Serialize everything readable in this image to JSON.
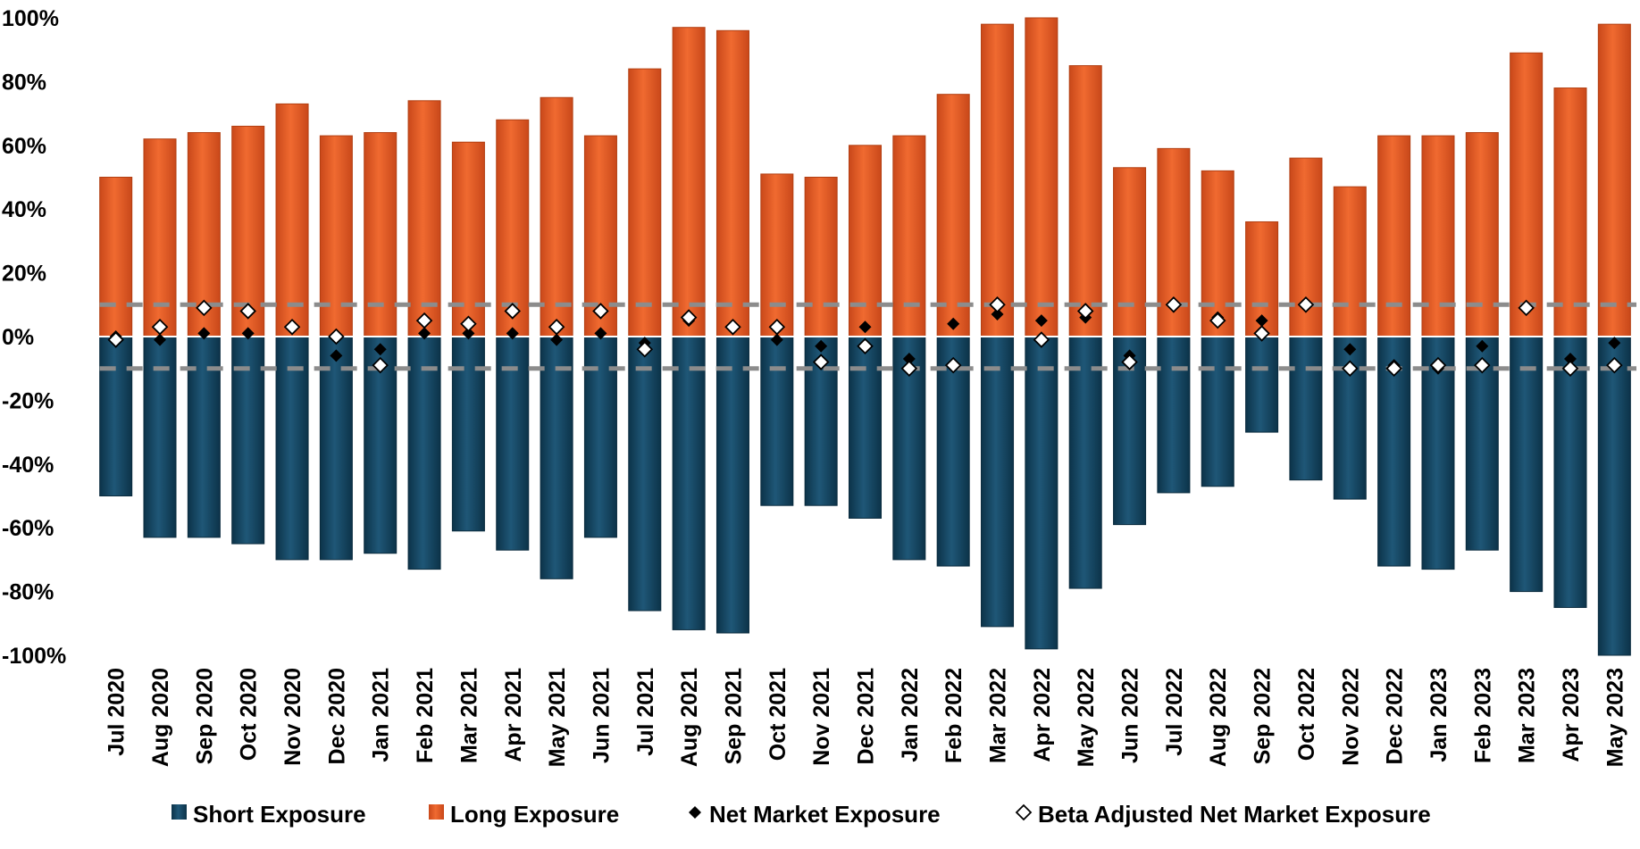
{
  "chart_data": {
    "type": "bar",
    "categories": [
      "Jul 2020",
      "Aug 2020",
      "Sep 2020",
      "Oct 2020",
      "Nov 2020",
      "Dec 2020",
      "Jan 2021",
      "Feb 2021",
      "Mar 2021",
      "Apr 2021",
      "May 2021",
      "Jun 2021",
      "Jul 2021",
      "Aug 2021",
      "Sep 2021",
      "Oct 2021",
      "Nov 2021",
      "Dec 2021",
      "Jan 2022",
      "Feb 2022",
      "Mar 2022",
      "Apr 2022",
      "May 2022",
      "Jun 2022",
      "Jul 2022",
      "Aug 2022",
      "Sep 2022",
      "Oct 2022",
      "Nov 2022",
      "Dec 2022",
      "Jan 2023",
      "Feb 2023",
      "Mar 2023",
      "Apr 2023",
      "May 2023"
    ],
    "ylim": [
      -100,
      100
    ],
    "y_ticks": [
      100,
      80,
      60,
      40,
      20,
      0,
      -20,
      -40,
      -60,
      -80,
      -100
    ],
    "y_tick_labels": [
      "100%",
      "80%",
      "60%",
      "40%",
      "20%",
      "0%",
      "-20%",
      "-40%",
      "-60%",
      "-80%",
      "-100%"
    ],
    "reference_lines": [
      10,
      -10
    ],
    "legend_position": "bottom",
    "grid": false,
    "series": [
      {
        "name": "Short Exposure",
        "kind": "bar",
        "color": "#1c4e6b",
        "values": [
          -50,
          -63,
          -63,
          -65,
          -70,
          -70,
          -68,
          -73,
          -61,
          -67,
          -76,
          -63,
          -86,
          -92,
          -93,
          -53,
          -53,
          -57,
          -70,
          -72,
          -91,
          -98,
          -79,
          -59,
          -49,
          -47,
          -30,
          -45,
          -51,
          -72,
          -73,
          -67,
          -80,
          -85,
          -100
        ]
      },
      {
        "name": "Long Exposure",
        "kind": "bar",
        "color": "#e8622a",
        "values": [
          50,
          62,
          64,
          66,
          73,
          63,
          64,
          74,
          61,
          68,
          75,
          63,
          84,
          97,
          96,
          51,
          50,
          60,
          63,
          76,
          98,
          100,
          85,
          53,
          59,
          52,
          36,
          56,
          47,
          63,
          63,
          64,
          89,
          78,
          98
        ]
      },
      {
        "name": "Net Market Exposure",
        "kind": "marker",
        "marker": "diamond-filled",
        "color": "#000000",
        "values": [
          0,
          -1,
          1,
          1,
          3,
          -6,
          -4,
          1,
          1,
          1,
          -1,
          1,
          -2,
          5,
          3,
          -1,
          -3,
          3,
          -7,
          4,
          7,
          5,
          6,
          -6,
          10,
          6,
          5,
          10,
          -4,
          -9,
          -10,
          -3,
          9,
          -7,
          -2
        ]
      },
      {
        "name": "Beta Adjusted Net Market Exposure",
        "kind": "marker",
        "marker": "diamond-open",
        "color": "#000000",
        "values": [
          -1,
          3,
          9,
          8,
          3,
          0,
          -9,
          5,
          4,
          8,
          3,
          8,
          -4,
          6,
          3,
          3,
          -8,
          -3,
          -10,
          -9,
          10,
          -1,
          8,
          -8,
          10,
          5,
          1,
          10,
          -10,
          -10,
          -9,
          -9,
          9,
          -10,
          -9
        ]
      }
    ]
  }
}
